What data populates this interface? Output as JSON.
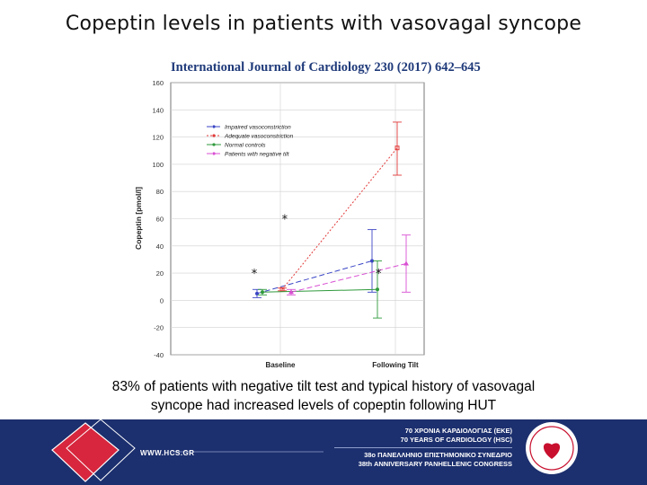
{
  "slide": {
    "title": "Copeptin levels in patients with vasovagal syncope",
    "caption_line1": "83% of patients with negative tilt test and typical history of vasovagal",
    "caption_line2": "syncope had increased levels of copeptin following HUT"
  },
  "journal_reference": "International Journal of Cardiology 230 (2017) 642–645",
  "footer": {
    "url": "WWW.HCS.GR",
    "line1": "70 ΧΡΟΝΙΑ ΚΑΡΔΙΟΛΟΓΙΑΣ (ΕΚΕ)",
    "line2": "70 YEARS OF CARDIOLOGY (HSC)",
    "line3": "38ο ΠΑΝΕΛΛΗΝΙΟ ΕΠΙΣΤΗΜΟΝΙΚΟ ΣΥΝΕΔΡΙΟ",
    "line4": "38th ANNIVERSARY PANHELLENIC CONGRESS",
    "colors": {
      "background": "#1c2f6e",
      "logo_diamond": "#d7263d",
      "emblem": "#c8102e"
    }
  },
  "chart_data": {
    "type": "line",
    "title": "",
    "xlabel": "",
    "ylabel": "Copeptin [pmol/l]",
    "categories": [
      "Baseline",
      "Following Tilt"
    ],
    "ylim": [
      -40,
      160
    ],
    "yticks": [
      -40,
      -20,
      0,
      20,
      40,
      60,
      80,
      100,
      120,
      140,
      160
    ],
    "grid": true,
    "legend_position": "top-left",
    "series": [
      {
        "name": "Impaired vasoconstriction",
        "color": "#3a45c4",
        "dash": "6,3",
        "marker": "circle",
        "values": [
          5,
          29
        ],
        "err_low": [
          2,
          6
        ],
        "err_high": [
          8,
          52
        ]
      },
      {
        "name": "Adequate vasoconstriction",
        "color": "#e23a3a",
        "dash": "2,2",
        "marker": "square",
        "values": [
          8,
          112
        ],
        "err_low": [
          7,
          92
        ],
        "err_high": [
          9,
          131
        ]
      },
      {
        "name": "Normal controls",
        "color": "#2f9a3c",
        "dash": "none",
        "marker": "circle",
        "values": [
          6,
          8
        ],
        "err_low": [
          4,
          -13
        ],
        "err_high": [
          8,
          29
        ]
      },
      {
        "name": "Patients with negative tilt",
        "color": "#d94fd3",
        "dash": "6,3",
        "marker": "triangle",
        "values": [
          6,
          27
        ],
        "err_low": [
          4,
          6
        ],
        "err_high": [
          8,
          48
        ]
      }
    ],
    "annotations": [
      {
        "text": "*",
        "x": 0.45,
        "y": 60
      },
      {
        "text": "*",
        "x": 0.33,
        "y": 20
      },
      {
        "text": "*",
        "x": 0.82,
        "y": 20
      }
    ]
  }
}
